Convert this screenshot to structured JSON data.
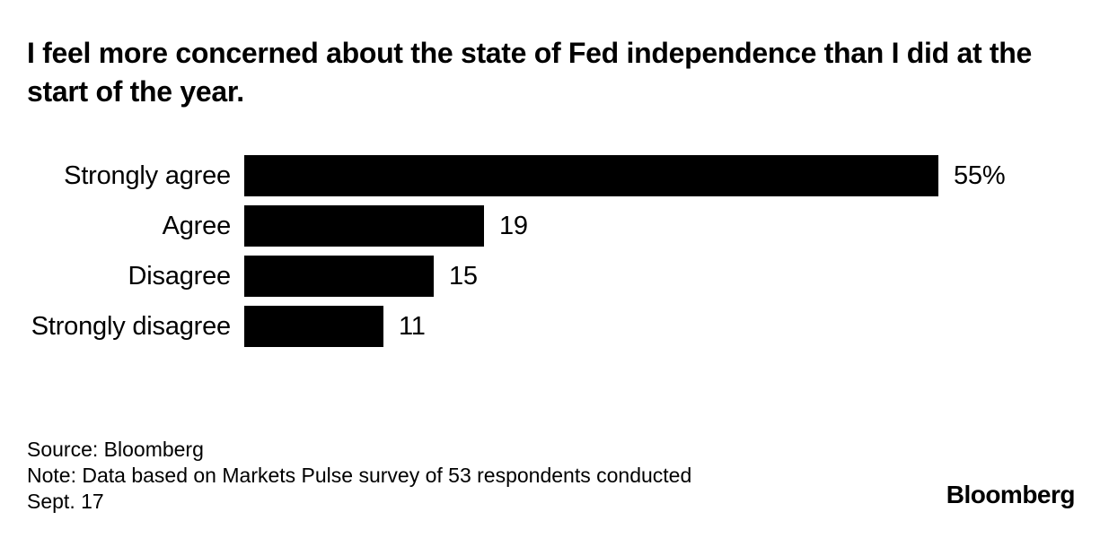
{
  "title": "I feel more concerned about the state of Fed independence than I did at the start of the year.",
  "chart_data": {
    "type": "bar",
    "orientation": "horizontal",
    "title": "I feel more concerned about the state of Fed independence than I did at the start of the year.",
    "categories": [
      "Strongly agree",
      "Agree",
      "Disagree",
      "Strongly disagree"
    ],
    "values": [
      55,
      19,
      15,
      11
    ],
    "value_labels": [
      "55%",
      "19",
      "15",
      "11"
    ],
    "unit": "percent",
    "xlim": [
      0,
      55
    ],
    "bar_color": "#000000",
    "grid": false,
    "legend": false
  },
  "footer": {
    "source": "Source: Bloomberg",
    "note_lines": [
      "Note: Data based on Markets Pulse survey of 53 respondents conducted",
      "Sept. 17"
    ]
  },
  "branding": {
    "logo_text": "Bloomberg"
  }
}
